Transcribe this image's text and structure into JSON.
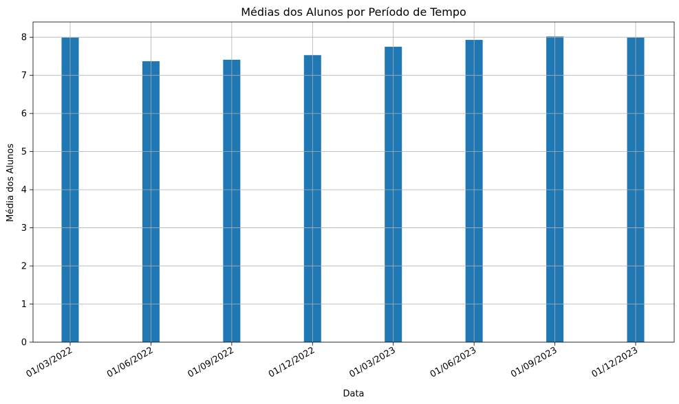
{
  "chart_data": {
    "type": "bar",
    "title": "Médias dos Alunos por Período de Tempo",
    "xlabel": "Data",
    "ylabel": "Média dos Alunos",
    "categories": [
      "01/03/2022",
      "01/06/2022",
      "01/09/2022",
      "01/12/2022",
      "01/03/2023",
      "01/06/2023",
      "01/09/2023",
      "01/12/2023"
    ],
    "values": [
      7.99,
      7.37,
      7.41,
      7.53,
      7.75,
      7.93,
      8.02,
      7.99
    ],
    "ylim": [
      0,
      8.4
    ],
    "yticks": [
      0,
      1,
      2,
      3,
      4,
      5,
      6,
      7,
      8
    ],
    "grid": true,
    "bar_color": "#1f77b4"
  }
}
